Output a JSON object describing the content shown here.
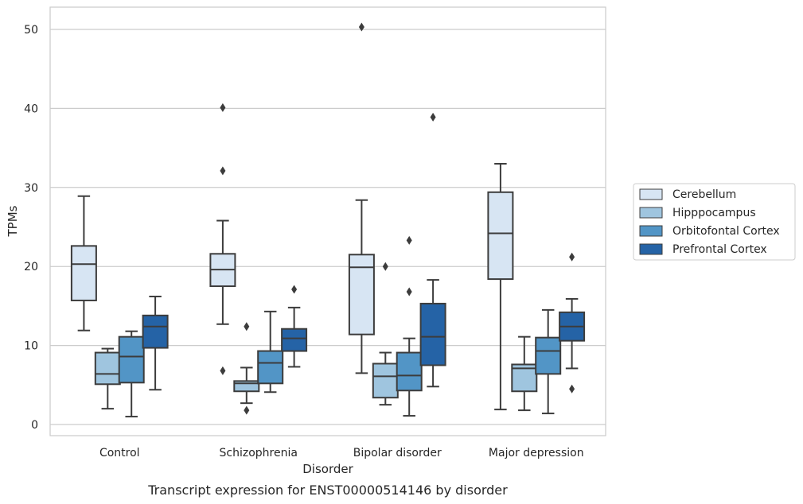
{
  "chart_data": {
    "type": "box",
    "xlabel": "Disorder",
    "ylabel": "TPMs",
    "caption": "Transcript expression for ENST00000514146 by disorder",
    "ylim": [
      -1.3,
      52.7
    ],
    "yticks": [
      0,
      10,
      20,
      30,
      40,
      50
    ],
    "grid": "horizontal",
    "legend_position": "right",
    "categories": [
      "Control",
      "Schizophrenia",
      "Bipolar disorder",
      "Major depression"
    ],
    "series": [
      {
        "name": "Cerebellum",
        "color": "#d7e5f3",
        "boxes": [
          {
            "whisker_low": 11.9,
            "q1": 15.7,
            "median": 20.3,
            "q3": 22.6,
            "whisker_high": 28.9,
            "outliers": []
          },
          {
            "whisker_low": 12.7,
            "q1": 17.5,
            "median": 19.6,
            "q3": 21.6,
            "whisker_high": 25.8,
            "outliers": [
              32.1,
              40.1,
              6.8
            ]
          },
          {
            "whisker_low": 6.5,
            "q1": 11.4,
            "median": 19.9,
            "q3": 21.5,
            "whisker_high": 28.4,
            "outliers": [
              50.3
            ]
          },
          {
            "whisker_low": 1.9,
            "q1": 18.4,
            "median": 24.2,
            "q3": 29.4,
            "whisker_high": 33.0,
            "outliers": []
          }
        ]
      },
      {
        "name": "Hipppocampus",
        "color": "#9fc5df",
        "boxes": [
          {
            "whisker_low": 2.0,
            "q1": 5.1,
            "median": 6.4,
            "q3": 9.1,
            "whisker_high": 9.6,
            "outliers": []
          },
          {
            "whisker_low": 2.7,
            "q1": 4.2,
            "median": 5.2,
            "q3": 5.5,
            "whisker_high": 7.2,
            "outliers": [
              12.4,
              1.8
            ]
          },
          {
            "whisker_low": 2.5,
            "q1": 3.4,
            "median": 6.1,
            "q3": 7.7,
            "whisker_high": 9.1,
            "outliers": [
              20.0
            ]
          },
          {
            "whisker_low": 1.8,
            "q1": 4.2,
            "median": 7.1,
            "q3": 7.6,
            "whisker_high": 11.1,
            "outliers": []
          }
        ]
      },
      {
        "name": "Orbitofontal Cortex",
        "color": "#5295c6",
        "boxes": [
          {
            "whisker_low": 1.0,
            "q1": 5.3,
            "median": 8.6,
            "q3": 11.1,
            "whisker_high": 11.8,
            "outliers": []
          },
          {
            "whisker_low": 4.1,
            "q1": 5.2,
            "median": 7.8,
            "q3": 9.3,
            "whisker_high": 14.3,
            "outliers": []
          },
          {
            "whisker_low": 1.1,
            "q1": 4.3,
            "median": 6.2,
            "q3": 9.1,
            "whisker_high": 10.9,
            "outliers": [
              23.3,
              16.8
            ]
          },
          {
            "whisker_low": 1.4,
            "q1": 6.4,
            "median": 9.3,
            "q3": 11.0,
            "whisker_high": 14.5,
            "outliers": []
          }
        ]
      },
      {
        "name": "Prefrontal Cortex",
        "color": "#2563a6",
        "boxes": [
          {
            "whisker_low": 4.4,
            "q1": 9.7,
            "median": 12.4,
            "q3": 13.8,
            "whisker_high": 16.2,
            "outliers": []
          },
          {
            "whisker_low": 7.3,
            "q1": 9.3,
            "median": 10.9,
            "q3": 12.1,
            "whisker_high": 14.8,
            "outliers": [
              17.1
            ]
          },
          {
            "whisker_low": 4.8,
            "q1": 7.5,
            "median": 11.1,
            "q3": 15.3,
            "whisker_high": 18.3,
            "outliers": [
              38.9
            ]
          },
          {
            "whisker_low": 7.1,
            "q1": 10.6,
            "median": 12.4,
            "q3": 14.2,
            "whisker_high": 15.9,
            "outliers": [
              21.2,
              4.5
            ]
          }
        ]
      }
    ]
  }
}
